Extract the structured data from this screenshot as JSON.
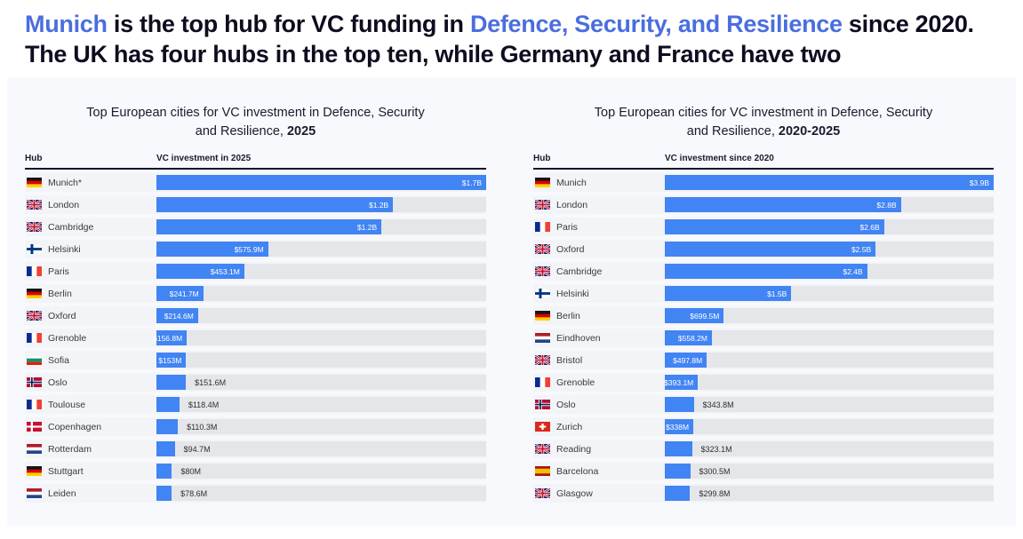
{
  "headline": {
    "segments": [
      {
        "text": "Munich",
        "style": "blue"
      },
      {
        "text": " is the top hub for VC funding in ",
        "style": "dark"
      },
      {
        "text": "Defence, Security, and Resilience",
        "style": "blue"
      },
      {
        "text": " since 2020. The UK has four hubs in the top ten, while Germany and France have two",
        "style": "dark"
      }
    ],
    "accent_color": "#4a6ee0",
    "text_color": "#0d0d1f"
  },
  "colors": {
    "bar_fill": "#4184f3",
    "bar_track": "#e5e6ea",
    "panel_bg": "#f8f9fc",
    "header_rule": "#15152a"
  },
  "chart_data": [
    {
      "type": "bar",
      "orientation": "horizontal",
      "title_line1": "Top European cities for VC investment in Defence, Security",
      "title_line2": "and Resilience,",
      "title_period": "2025",
      "col_hub": "Hub",
      "col_value": "VC investment in 2025",
      "unit": "USD",
      "max_value_m": 1700,
      "rows": [
        {
          "city": "Munich*",
          "country": "de",
          "label": "$1.7B",
          "value_m": 1700,
          "label_inside": true
        },
        {
          "city": "London",
          "country": "gb",
          "label": "$1.2B",
          "value_m": 1220,
          "label_inside": true
        },
        {
          "city": "Cambridge",
          "country": "gb",
          "label": "$1.2B",
          "value_m": 1160,
          "label_inside": true
        },
        {
          "city": "Helsinki",
          "country": "fi",
          "label": "$575.9M",
          "value_m": 575.9,
          "label_inside": true
        },
        {
          "city": "Paris",
          "country": "fr",
          "label": "$453.1M",
          "value_m": 453.1,
          "label_inside": true
        },
        {
          "city": "Berlin",
          "country": "de",
          "label": "$241.7M",
          "value_m": 241.7,
          "label_inside": true
        },
        {
          "city": "Oxford",
          "country": "gb",
          "label": "$214.6M",
          "value_m": 214.6,
          "label_inside": true
        },
        {
          "city": "Grenoble",
          "country": "fr",
          "label": "$156.8M",
          "value_m": 156.8,
          "label_inside": true
        },
        {
          "city": "Sofia",
          "country": "bg",
          "label": "$153M",
          "value_m": 153,
          "label_inside": true
        },
        {
          "city": "Oslo",
          "country": "no",
          "label": "$151.6M",
          "value_m": 151.6,
          "label_inside": false
        },
        {
          "city": "Toulouse",
          "country": "fr",
          "label": "$118.4M",
          "value_m": 118.4,
          "label_inside": false
        },
        {
          "city": "Copenhagen",
          "country": "dk",
          "label": "$110.3M",
          "value_m": 110.3,
          "label_inside": false
        },
        {
          "city": "Rotterdam",
          "country": "nl",
          "label": "$94.7M",
          "value_m": 94.7,
          "label_inside": false
        },
        {
          "city": "Stuttgart",
          "country": "de",
          "label": "$80M",
          "value_m": 80,
          "label_inside": false
        },
        {
          "city": "Leiden",
          "country": "nl",
          "label": "$78.6M",
          "value_m": 78.6,
          "label_inside": false
        }
      ]
    },
    {
      "type": "bar",
      "orientation": "horizontal",
      "title_line1": "Top European cities for VC investment in Defence, Security",
      "title_line2": "and Resilience,",
      "title_period": "2020-2025",
      "col_hub": "Hub",
      "col_value": "VC investment since 2020",
      "unit": "USD",
      "max_value_m": 3900,
      "rows": [
        {
          "city": "Munich",
          "country": "de",
          "label": "$3.9B",
          "value_m": 3900,
          "label_inside": true
        },
        {
          "city": "London",
          "country": "gb",
          "label": "$2.8B",
          "value_m": 2800,
          "label_inside": true
        },
        {
          "city": "Paris",
          "country": "fr",
          "label": "$2.6B",
          "value_m": 2600,
          "label_inside": true
        },
        {
          "city": "Oxford",
          "country": "gb",
          "label": "$2.5B",
          "value_m": 2500,
          "label_inside": true
        },
        {
          "city": "Cambridge",
          "country": "gb",
          "label": "$2.4B",
          "value_m": 2400,
          "label_inside": true
        },
        {
          "city": "Helsinki",
          "country": "fi",
          "label": "$1.5B",
          "value_m": 1500,
          "label_inside": true
        },
        {
          "city": "Berlin",
          "country": "de",
          "label": "$699.5M",
          "value_m": 699.5,
          "label_inside": true
        },
        {
          "city": "Eindhoven",
          "country": "nl",
          "label": "$558.2M",
          "value_m": 558.2,
          "label_inside": true
        },
        {
          "city": "Bristol",
          "country": "gb",
          "label": "$497.8M",
          "value_m": 497.8,
          "label_inside": true
        },
        {
          "city": "Grenoble",
          "country": "fr",
          "label": "$393.1M",
          "value_m": 393.1,
          "label_inside": true
        },
        {
          "city": "Oslo",
          "country": "no",
          "label": "$343.8M",
          "value_m": 343.8,
          "label_inside": false
        },
        {
          "city": "Zurich",
          "country": "ch",
          "label": "$338M",
          "value_m": 338,
          "label_inside": true
        },
        {
          "city": "Reading",
          "country": "gb",
          "label": "$323.1M",
          "value_m": 323.1,
          "label_inside": false
        },
        {
          "city": "Barcelona",
          "country": "es",
          "label": "$300.5M",
          "value_m": 300.5,
          "label_inside": false
        },
        {
          "city": "Glasgow",
          "country": "gb",
          "label": "$299.8M",
          "value_m": 299.8,
          "label_inside": false
        }
      ]
    }
  ]
}
